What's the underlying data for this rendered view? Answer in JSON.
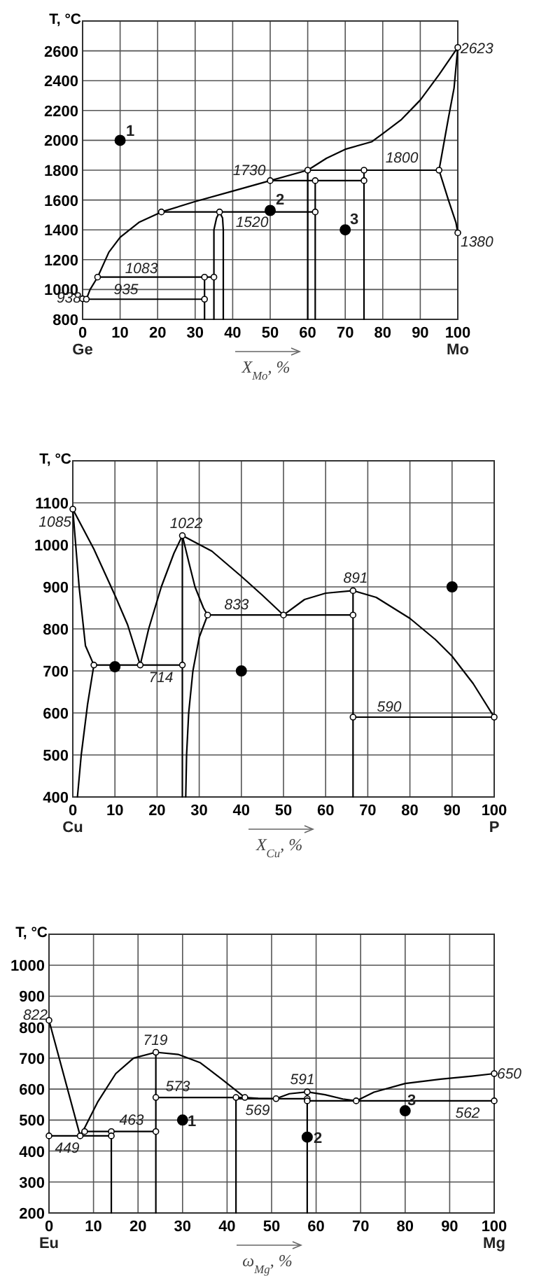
{
  "chart_data": [
    {
      "type": "line",
      "ylabel": "T, °C",
      "xlabel": "X$_{Mo}$, %",
      "xlim": [
        0,
        100
      ],
      "xticks": [
        0,
        10,
        20,
        30,
        40,
        50,
        60,
        70,
        80,
        90,
        100
      ],
      "ylim": [
        800,
        2800
      ],
      "yticks": [
        800,
        1000,
        1200,
        1400,
        1600,
        1800,
        2000,
        2200,
        2400,
        2600
      ],
      "grid": true,
      "line_style": "solid",
      "series": [
        {
          "x": [
            0,
            1,
            2,
            4,
            7,
            10,
            15,
            21,
            30,
            40,
            50,
            60,
            65,
            70,
            77,
            80,
            85,
            90,
            95,
            100
          ],
          "values": [
            938,
            935,
            1000,
            1083,
            1250,
            1350,
            1450,
            1520,
            1590,
            1660,
            1730,
            1800,
            1880,
            1940,
            1990,
            2045,
            2140,
            2270,
            2440,
            2623
          ],
          "color": "#000000"
        },
        {
          "x": [
            100,
            99,
            97.5,
            95,
            97.5,
            99.5,
            100
          ],
          "values": [
            2623,
            2350,
            2150,
            1800,
            1600,
            1450,
            1380
          ],
          "color": "#000000"
        },
        {
          "x": [
            1,
            32.5
          ],
          "values": [
            935,
            935
          ],
          "color": "#000000"
        },
        {
          "x": [
            4,
            35
          ],
          "values": [
            1083,
            1083
          ],
          "color": "#000000"
        },
        {
          "x": [
            32.5,
            32.5
          ],
          "values": [
            1083,
            800
          ],
          "color": "#000000"
        },
        {
          "x": [
            35,
            35,
            35.7,
            36.5,
            37.3,
            37.5,
            37.5
          ],
          "values": [
            800,
            1400,
            1480,
            1520,
            1480,
            1400,
            800
          ],
          "color": "#000000"
        },
        {
          "x": [
            21,
            62
          ],
          "values": [
            1520,
            1520
          ],
          "color": "#000000"
        },
        {
          "x": [
            50,
            75
          ],
          "values": [
            1730,
            1730
          ],
          "color": "#000000"
        },
        {
          "x": [
            60,
            95
          ],
          "values": [
            1800,
            1800
          ],
          "color": "#000000"
        },
        {
          "x": [
            60,
            60
          ],
          "values": [
            1800,
            800
          ],
          "color": "#000000"
        },
        {
          "x": [
            62,
            62
          ],
          "values": [
            1730,
            800
          ],
          "color": "#000000"
        },
        {
          "x": [
            75,
            75
          ],
          "values": [
            1800,
            800
          ],
          "color": "#000000"
        },
        {
          "type": "scatter",
          "x": [
            0,
            1,
            4,
            21,
            32.5,
            32.5,
            35,
            36.5,
            50,
            60,
            62,
            62,
            75,
            75,
            95,
            100,
            100
          ],
          "values": [
            938,
            935,
            1083,
            1520,
            935,
            1083,
            1083,
            1520,
            1730,
            1800,
            1730,
            1520,
            1800,
            1730,
            1800,
            2623,
            1380
          ],
          "color": "#ffffff"
        },
        {
          "type": "scatter",
          "x": [
            10,
            50,
            70
          ],
          "values": [
            2000,
            1530,
            1400
          ],
          "color": "#000000"
        }
      ],
      "annotations": [
        "938",
        "935",
        "1083",
        "1520",
        "1730",
        "1800",
        "2623",
        "1380",
        "1",
        "2",
        "3",
        "Ge",
        "Mo"
      ]
    },
    {
      "type": "line",
      "ylabel": "T, °C",
      "xlabel": "X$_{Cu}$, %",
      "xlim": [
        0,
        100
      ],
      "xticks": [
        0,
        10,
        20,
        30,
        40,
        50,
        60,
        70,
        80,
        90,
        100
      ],
      "ylim": [
        400,
        1200
      ],
      "yticks": [
        400,
        500,
        600,
        700,
        800,
        900,
        1000,
        1100
      ],
      "grid": true,
      "line_style": "solid",
      "series": [
        {
          "x": [
            0,
            5,
            10,
            13,
            16
          ],
          "values": [
            1085,
            990,
            880,
            810,
            714
          ],
          "color": "#000000"
        },
        {
          "x": [
            0,
            1.5,
            3,
            5,
            3.5,
            2,
            1.1
          ],
          "values": [
            1085,
            900,
            760,
            714,
            620,
            500,
            400
          ],
          "color": "#000000"
        },
        {
          "x": [
            16,
            18,
            21,
            24,
            26
          ],
          "values": [
            714,
            800,
            900,
            980,
            1022
          ],
          "color": "#000000"
        },
        {
          "x": [
            26,
            26
          ],
          "values": [
            1022,
            400
          ],
          "color": "#000000"
        },
        {
          "x": [
            26,
            27.5,
            29,
            31,
            32
          ],
          "values": [
            1022,
            960,
            900,
            850,
            833
          ],
          "color": "#000000"
        },
        {
          "x": [
            32,
            30,
            28.5,
            27.5,
            27,
            26.8
          ],
          "values": [
            833,
            780,
            700,
            600,
            500,
            400
          ],
          "color": "#000000"
        },
        {
          "x": [
            26,
            33,
            40,
            45,
            50
          ],
          "values": [
            1022,
            985,
            925,
            880,
            833
          ],
          "color": "#000000"
        },
        {
          "x": [
            32,
            66.5
          ],
          "values": [
            833,
            833
          ],
          "color": "#000000"
        },
        {
          "x": [
            50,
            55,
            60,
            66.5
          ],
          "values": [
            833,
            870,
            885,
            891
          ],
          "color": "#000000"
        },
        {
          "x": [
            66.5,
            72,
            80,
            86,
            90,
            95,
            100
          ],
          "values": [
            891,
            875,
            825,
            775,
            735,
            670,
            590
          ],
          "color": "#000000"
        },
        {
          "x": [
            66.5,
            66.5
          ],
          "values": [
            891,
            400
          ],
          "color": "#000000"
        },
        {
          "x": [
            66.5,
            100
          ],
          "values": [
            590,
            590
          ],
          "color": "#000000"
        },
        {
          "x": [
            5,
            26
          ],
          "values": [
            714,
            714
          ],
          "color": "#000000"
        },
        {
          "type": "scatter",
          "x": [
            0,
            5,
            16,
            26,
            26,
            32,
            50,
            66.5,
            66.5,
            66.5,
            100
          ],
          "values": [
            1085,
            714,
            714,
            714,
            1022,
            833,
            833,
            833,
            891,
            590,
            590
          ],
          "color": "#ffffff"
        },
        {
          "type": "scatter",
          "x": [
            10,
            40,
            90
          ],
          "values": [
            710,
            700,
            900
          ],
          "color": "#000000"
        }
      ],
      "annotations": [
        "1085",
        "1022",
        "891",
        "833",
        "714",
        "590",
        "Cu",
        "P"
      ]
    },
    {
      "type": "line",
      "ylabel": "T, °C",
      "xlabel": "ω$_{Mg}$, %",
      "xlim": [
        0,
        100
      ],
      "xticks": [
        0,
        10,
        20,
        30,
        40,
        50,
        60,
        70,
        80,
        90,
        100
      ],
      "ylim": [
        200,
        1100
      ],
      "yticks": [
        200,
        300,
        400,
        500,
        600,
        700,
        800,
        900,
        1000
      ],
      "grid": true,
      "line_style": "solid",
      "series": [
        {
          "x": [
            0,
            7
          ],
          "values": [
            822,
            449
          ],
          "color": "#000000"
        },
        {
          "x": [
            0,
            14
          ],
          "values": [
            449,
            449
          ],
          "color": "#000000"
        },
        {
          "x": [
            8,
            24
          ],
          "values": [
            463,
            463
          ],
          "color": "#000000"
        },
        {
          "x": [
            14,
            14
          ],
          "values": [
            463,
            200
          ],
          "color": "#000000"
        },
        {
          "x": [
            24,
            24
          ],
          "values": [
            719,
            200
          ],
          "color": "#000000"
        },
        {
          "x": [
            7,
            8,
            11,
            15,
            19,
            24,
            29,
            34,
            39,
            44,
            47,
            51
          ],
          "values": [
            449,
            475,
            560,
            650,
            700,
            719,
            712,
            685,
            630,
            573,
            570,
            569
          ],
          "color": "#000000"
        },
        {
          "x": [
            24,
            44
          ],
          "values": [
            573,
            573
          ],
          "color": "#000000"
        },
        {
          "x": [
            42,
            42
          ],
          "values": [
            573,
            200
          ],
          "color": "#000000"
        },
        {
          "x": [
            42,
            58
          ],
          "values": [
            569,
            569
          ],
          "color": "#000000"
        },
        {
          "x": [
            51,
            54,
            58,
            62,
            66,
            69
          ],
          "values": [
            569,
            585,
            591,
            582,
            568,
            562
          ],
          "color": "#000000"
        },
        {
          "x": [
            69,
            73,
            80,
            88,
            95,
            100
          ],
          "values": [
            562,
            590,
            618,
            632,
            642,
            650
          ],
          "color": "#000000"
        },
        {
          "x": [
            58,
            100
          ],
          "values": [
            562,
            562
          ],
          "color": "#000000"
        },
        {
          "x": [
            58,
            58
          ],
          "values": [
            591,
            200
          ],
          "color": "#000000"
        },
        {
          "type": "scatter",
          "x": [
            0,
            0,
            7,
            8,
            14,
            14,
            24,
            24,
            24,
            42,
            44,
            51,
            58,
            58,
            58,
            69,
            100,
            100
          ],
          "values": [
            822,
            449,
            449,
            463,
            463,
            449,
            463,
            719,
            573,
            573,
            573,
            569,
            591,
            569,
            562,
            562,
            562,
            650
          ],
          "color": "#ffffff"
        },
        {
          "type": "scatter",
          "x": [
            30,
            58,
            80
          ],
          "values": [
            500,
            445,
            530
          ],
          "color": "#000000"
        }
      ],
      "annotations": [
        "822",
        "719",
        "573",
        "463",
        "449",
        "591",
        "569",
        "562",
        "650",
        "1",
        "2",
        "3",
        "Eu",
        "Mg"
      ]
    }
  ]
}
